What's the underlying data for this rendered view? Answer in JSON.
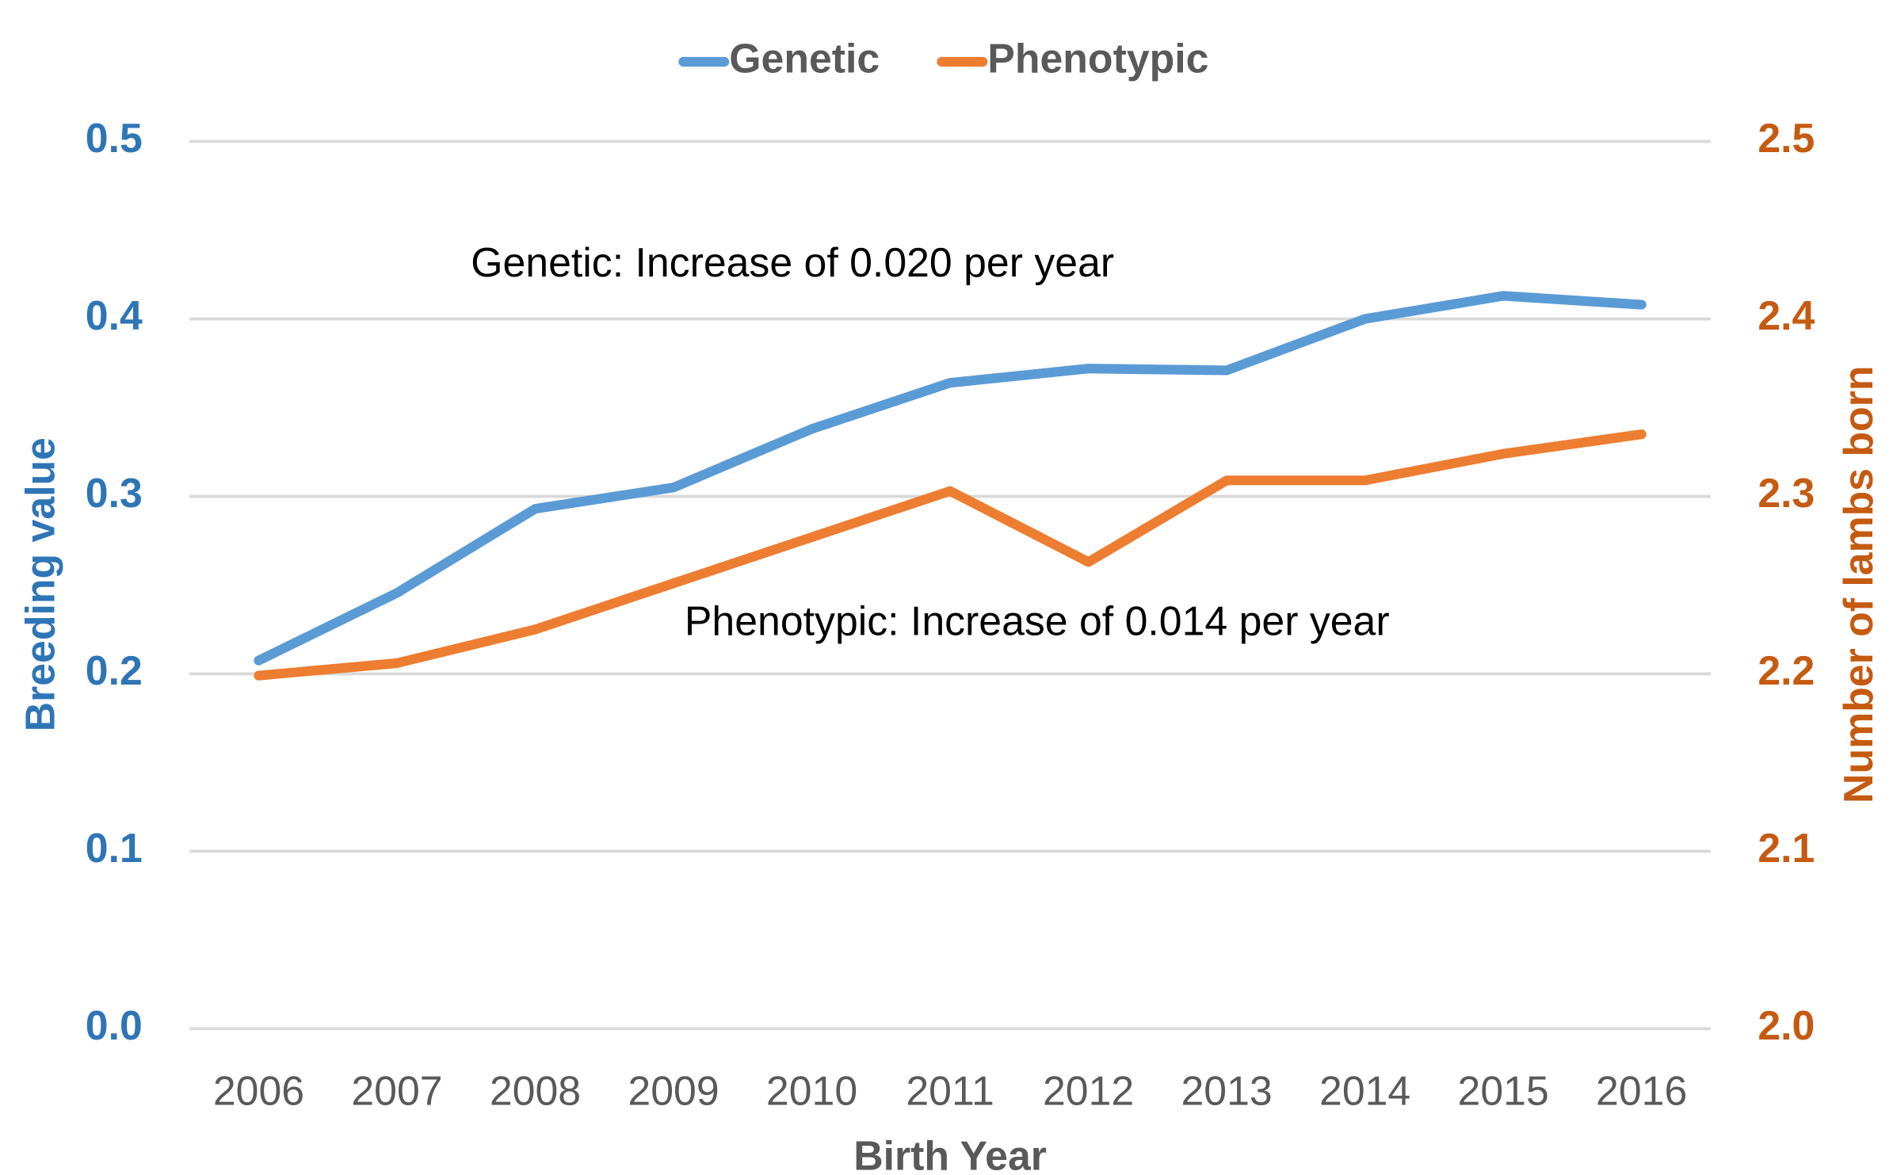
{
  "chart_data": {
    "type": "line",
    "categories": [
      "2006",
      "2007",
      "2008",
      "2009",
      "2010",
      "2011",
      "2012",
      "2013",
      "2014",
      "2015",
      "2016"
    ],
    "series": [
      {
        "name": "Genetic",
        "color": "#5b9bd5",
        "values": [
          0.2075,
          0.2456,
          0.293,
          0.305,
          0.338,
          0.364,
          0.372,
          0.371,
          0.4,
          0.413,
          0.408
        ]
      },
      {
        "name": "Phenotypic",
        "color": "#ed7d31",
        "axis": "y2",
        "values": [
          2.199,
          2.206,
          2.225,
          2.251,
          2.277,
          2.303,
          2.263,
          2.309,
          2.309,
          2.324,
          2.335
        ]
      }
    ],
    "ylim": [
      0,
      0.5
    ],
    "yticks": [
      {
        "value": 0,
        "label": "0.0"
      },
      0.1,
      0.2,
      0.3,
      0.4,
      0.5
    ],
    "y2lim": [
      2,
      2.5
    ],
    "y2ticks": [
      {
        "value": 2,
        "label": "2.0"
      },
      2.1,
      2.2,
      2.3,
      2.4,
      2.5
    ],
    "ylabel": "Breeding value",
    "y2label": "Number of lambs born",
    "xlabel": "Birth Year",
    "annotations": [
      "Genetic: Increase of 0.020 per year",
      "Phenotypic: Increase of 0.014 per year"
    ],
    "grid": true,
    "legend": "top"
  }
}
